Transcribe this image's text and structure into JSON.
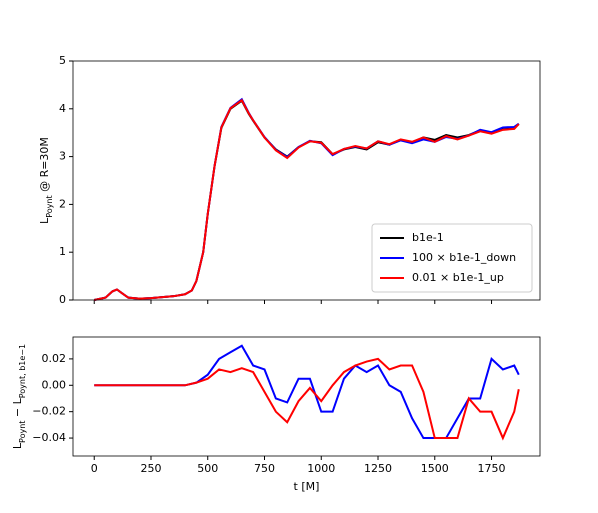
{
  "chart_data": [
    {
      "type": "line",
      "ylabel": [
        {
          "text": "L"
        },
        {
          "text": "Poynt",
          "sub": true
        },
        {
          "text": " @ R=30M"
        }
      ],
      "x": [
        0,
        50,
        80,
        100,
        120,
        150,
        200,
        250,
        300,
        350,
        400,
        430,
        450,
        480,
        500,
        530,
        560,
        600,
        650,
        680,
        700,
        750,
        800,
        850,
        900,
        950,
        1000,
        1050,
        1100,
        1150,
        1200,
        1250,
        1300,
        1350,
        1400,
        1450,
        1500,
        1550,
        1600,
        1650,
        1700,
        1750,
        1800,
        1850,
        1870
      ],
      "series": [
        {
          "name": "b1e-1",
          "color": "#000000",
          "values": [
            0,
            0.05,
            0.18,
            0.22,
            0.15,
            0.05,
            0.03,
            0.04,
            0.06,
            0.08,
            0.12,
            0.2,
            0.4,
            1.0,
            1.8,
            2.8,
            3.6,
            4.0,
            4.17,
            3.9,
            3.75,
            3.4,
            3.15,
            3.0,
            3.2,
            3.32,
            3.3,
            3.05,
            3.15,
            3.2,
            3.15,
            3.3,
            3.25,
            3.35,
            3.3,
            3.4,
            3.35,
            3.45,
            3.4,
            3.45,
            3.55,
            3.5,
            3.6,
            3.6,
            3.68
          ]
        },
        {
          "name": "100 × b1e-1_down",
          "color": "#0000ff",
          "values": [
            0,
            0.05,
            0.18,
            0.22,
            0.15,
            0.05,
            0.03,
            0.04,
            0.06,
            0.08,
            0.12,
            0.2,
            0.4,
            1.0,
            1.8,
            2.8,
            3.62,
            4.02,
            4.2,
            3.92,
            3.76,
            3.41,
            3.14,
            2.99,
            3.2,
            3.33,
            3.28,
            3.03,
            3.16,
            3.21,
            3.17,
            3.32,
            3.25,
            3.34,
            3.28,
            3.36,
            3.31,
            3.41,
            3.37,
            3.44,
            3.56,
            3.51,
            3.61,
            3.62,
            3.69
          ]
        },
        {
          "name": "0.01 × b1e-1_up",
          "color": "#ff0000",
          "values": [
            0,
            0.05,
            0.18,
            0.22,
            0.15,
            0.05,
            0.03,
            0.04,
            0.06,
            0.08,
            0.12,
            0.2,
            0.4,
            1.0,
            1.8,
            2.8,
            3.61,
            4.01,
            4.18,
            3.91,
            3.76,
            3.4,
            3.13,
            2.97,
            3.19,
            3.32,
            3.29,
            3.05,
            3.16,
            3.22,
            3.17,
            3.32,
            3.26,
            3.36,
            3.31,
            3.4,
            3.31,
            3.43,
            3.36,
            3.44,
            3.53,
            3.48,
            3.56,
            3.58,
            3.68
          ]
        }
      ],
      "xlim": [
        -93.5,
        1963.5
      ],
      "xticks": [
        0,
        250,
        500,
        750,
        1000,
        1250,
        1500,
        1750
      ],
      "show_xtick_labels": false,
      "ylim": [
        0,
        5
      ],
      "yticks": [
        0,
        1,
        2,
        3,
        4,
        5
      ],
      "legend_loc": "lower right"
    },
    {
      "type": "line",
      "xlabel": "t [M]",
      "ylabel": [
        {
          "text": "L"
        },
        {
          "text": "Poynt",
          "sub": true
        },
        {
          "text": " − L"
        },
        {
          "text": "Poynt, b1e−1",
          "sub": true
        }
      ],
      "x": [
        0,
        100,
        200,
        300,
        400,
        450,
        500,
        550,
        600,
        650,
        700,
        750,
        800,
        850,
        900,
        950,
        1000,
        1050,
        1100,
        1150,
        1200,
        1250,
        1300,
        1350,
        1400,
        1450,
        1500,
        1550,
        1600,
        1650,
        1700,
        1750,
        1800,
        1850,
        1870
      ],
      "series": [
        {
          "color": "#0000ff",
          "values": [
            0,
            0,
            0,
            0,
            0,
            0.002,
            0.008,
            0.02,
            0.025,
            0.03,
            0.015,
            0.012,
            -0.01,
            -0.013,
            0.005,
            0.005,
            -0.02,
            -0.02,
            0.005,
            0.015,
            0.01,
            0.015,
            0.0,
            -0.005,
            -0.025,
            -0.04,
            -0.04,
            -0.04,
            -0.025,
            -0.01,
            -0.01,
            0.02,
            0.012,
            0.015,
            0.008
          ]
        },
        {
          "color": "#ff0000",
          "values": [
            0,
            0,
            0,
            0,
            0,
            0.002,
            0.005,
            0.012,
            0.01,
            0.013,
            0.01,
            -0.005,
            -0.02,
            -0.028,
            -0.012,
            -0.002,
            -0.012,
            0.0,
            0.01,
            0.015,
            0.018,
            0.02,
            0.012,
            0.015,
            0.015,
            -0.005,
            -0.04,
            -0.04,
            -0.04,
            -0.01,
            -0.02,
            -0.02,
            -0.04,
            -0.02,
            -0.003
          ]
        }
      ],
      "xlim": [
        -93.5,
        1963.5
      ],
      "xticks": [
        0,
        250,
        500,
        750,
        1000,
        1250,
        1500,
        1750
      ],
      "show_xtick_labels": true,
      "ylim": [
        -0.0536,
        0.0366
      ],
      "yticks": [
        {
          "value": -0.04,
          "label": "−0.04"
        },
        {
          "value": -0.02,
          "label": "−0.02"
        },
        {
          "value": 0,
          "label": "0.00"
        },
        {
          "value": 0.02,
          "label": "0.02"
        }
      ]
    }
  ]
}
